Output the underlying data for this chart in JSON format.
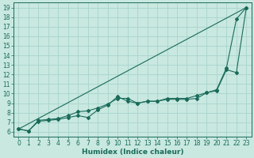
{
  "xlabel": "Humidex (Indice chaleur)",
  "xlim": [
    -0.5,
    23.5
  ],
  "ylim": [
    5.5,
    19.5
  ],
  "xticks": [
    0,
    1,
    2,
    3,
    4,
    5,
    6,
    7,
    8,
    9,
    10,
    11,
    12,
    13,
    14,
    15,
    16,
    17,
    18,
    19,
    20,
    21,
    22,
    23
  ],
  "yticks": [
    6,
    7,
    8,
    9,
    10,
    11,
    12,
    13,
    14,
    15,
    16,
    17,
    18,
    19
  ],
  "bg_color": "#c8e8e0",
  "line_color": "#1a6b5a",
  "grid_color": "#a8d4cc",
  "line1_x": [
    0,
    1,
    2,
    3,
    4,
    5,
    6,
    7,
    8,
    9,
    10,
    11,
    12,
    13,
    14,
    15,
    16,
    17,
    18,
    19,
    20,
    21,
    22,
    23
  ],
  "line1_y": [
    6.3,
    6.1,
    7.1,
    7.2,
    7.3,
    7.5,
    7.7,
    7.5,
    8.3,
    8.8,
    9.7,
    9.2,
    9.0,
    9.2,
    9.2,
    9.4,
    9.4,
    9.4,
    9.5,
    10.1,
    10.3,
    12.5,
    12.2,
    19.0
  ],
  "line2_x": [
    0,
    1,
    2,
    3,
    4,
    5,
    6,
    7,
    8,
    9,
    10,
    11,
    12,
    13,
    14,
    15,
    16,
    17,
    18,
    19,
    20,
    21,
    22,
    23
  ],
  "line2_y": [
    6.3,
    6.1,
    7.2,
    7.3,
    7.4,
    7.7,
    8.1,
    8.2,
    8.5,
    8.9,
    9.5,
    9.5,
    9.0,
    9.2,
    9.2,
    9.5,
    9.5,
    9.5,
    9.8,
    10.1,
    10.4,
    12.7,
    17.8,
    19.0
  ],
  "line3_x": [
    0,
    23
  ],
  "line3_y": [
    6.3,
    19.0
  ],
  "marker": "D",
  "marker_size": 2.0,
  "linewidth": 0.8,
  "tick_fontsize": 5.5,
  "label_fontsize": 6.5
}
